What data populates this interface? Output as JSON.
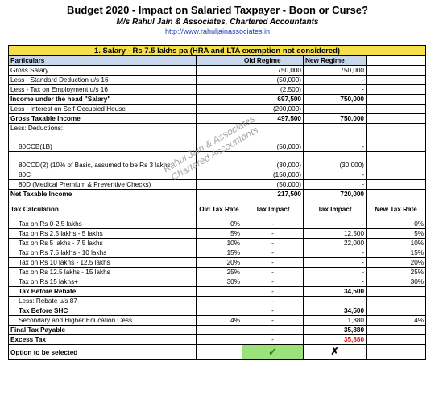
{
  "header": {
    "title": "Budget 2020 - Impact on Salaried Taxpayer - Boon or Curse?",
    "firm": "M/s Rahul Jain & Associates, Chartered Accountants",
    "website": "http://www.rahuljainassociates.in"
  },
  "section1": {
    "banner": "1. Salary - Rs 7.5 lakhs pa (HRA and LTA exemption not considered)",
    "col_particulars": "Particulars",
    "col_old": "Old Regime",
    "col_new": "New Regime",
    "rows": [
      {
        "label": "Gross Salary",
        "old": "750,000",
        "new": "750,000",
        "bold": false
      },
      {
        "label": "Less - Standard Deduction u/s 16",
        "old": "(50,000)",
        "new": "-",
        "bold": false
      },
      {
        "label": "Less - Tax on Employment u/s 16",
        "old": "(2,500)",
        "new": "-",
        "bold": false
      },
      {
        "label": "Income under the head \"Salary\"",
        "old": "697,500",
        "new": "750,000",
        "bold": true
      },
      {
        "label": "Less - Interest on Self-Occupied House",
        "old": "(200,000)",
        "new": "-",
        "bold": false
      },
      {
        "label": "Gross Taxable Income",
        "old": "497,500",
        "new": "750,000",
        "bold": true
      },
      {
        "label": "Less: Deductions:",
        "old": "",
        "new": "",
        "bold": false
      },
      {
        "label": "80CCB(1B)",
        "old": "(50,000)",
        "new": "-",
        "bold": false
      },
      {
        "label": "80CCD(2) (10% of Basic, assumed to be Rs 3 lakhs",
        "old": "(30,000)",
        "new": "(30,000)",
        "bold": false
      },
      {
        "label": "80C",
        "old": "(150,000)",
        "new": "-",
        "bold": false
      },
      {
        "label": "80D (Medical Premium & Preventive Checks)",
        "old": "(50,000)",
        "new": "-",
        "bold": false
      },
      {
        "label": "Net Taxable Income",
        "old": "217,500",
        "new": "720,000",
        "bold": true
      }
    ]
  },
  "tax": {
    "col_calc": "Tax Calculation",
    "col_old_rate": "Old Tax Rate",
    "col_old_impact": "Tax Impact",
    "col_new_impact": "Tax Impact",
    "col_new_rate": "New Tax Rate",
    "rows": [
      {
        "label": "Tax on Rs 0-2.5 lakhs",
        "old_rate": "0%",
        "old_impact": "-",
        "new_impact": "-",
        "new_rate": "0%",
        "bold": false
      },
      {
        "label": "Tax on Rs 2.5 lakhs - 5 lakhs",
        "old_rate": "5%",
        "old_impact": "-",
        "new_impact": "12,500",
        "new_rate": "5%",
        "bold": false
      },
      {
        "label": "Tax on Rs 5 lakhs - 7.5 lakhs",
        "old_rate": "10%",
        "old_impact": "-",
        "new_impact": "22,000",
        "new_rate": "10%",
        "bold": false
      },
      {
        "label": "Tax on Rs 7.5 lakhs - 10 lakhs",
        "old_rate": "15%",
        "old_impact": "-",
        "new_impact": "-",
        "new_rate": "15%",
        "bold": false
      },
      {
        "label": "Tax on Rs 10 lakhs - 12.5 lakhs",
        "old_rate": "20%",
        "old_impact": "-",
        "new_impact": "-",
        "new_rate": "20%",
        "bold": false
      },
      {
        "label": "Tax on Rs 12.5 lakhs - 15 lakhs",
        "old_rate": "25%",
        "old_impact": "-",
        "new_impact": "-",
        "new_rate": "25%",
        "bold": false
      },
      {
        "label": "Tax on Rs 15 lakhs+",
        "old_rate": "30%",
        "old_impact": "-",
        "new_impact": "-",
        "new_rate": "30%",
        "bold": false
      },
      {
        "label": "Tax Before Rebate",
        "old_rate": "",
        "old_impact": "-",
        "new_impact": "34,500",
        "new_rate": "",
        "bold": true
      },
      {
        "label": "Less: Rebate u/s 87",
        "old_rate": "",
        "old_impact": "-",
        "new_impact": "-",
        "new_rate": "",
        "bold": false
      },
      {
        "label": "Tax Before SHC",
        "old_rate": "",
        "old_impact": "-",
        "new_impact": "34,500",
        "new_rate": "",
        "bold": true
      },
      {
        "label": "Secondary and Higher Education Cess",
        "old_rate": "4%",
        "old_impact": "-",
        "new_impact": "1,380",
        "new_rate": "4%",
        "bold": false
      }
    ],
    "final_label": "Final Tax Payable",
    "final_old": "-",
    "final_new": "35,880",
    "excess_label": "Excess Tax",
    "excess_old": "-",
    "excess_new": "35,880",
    "option_label": "Option to be selected",
    "option_old": "✓",
    "option_new": "✗"
  },
  "watermark": {
    "line1": "Rahul Jain & Associates",
    "line2": "Chartered Accountants"
  }
}
